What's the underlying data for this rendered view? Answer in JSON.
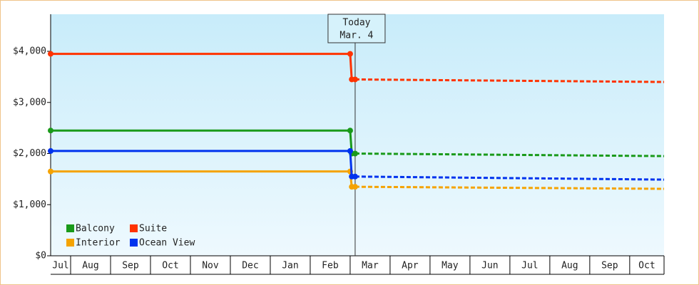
{
  "chart_data": {
    "type": "line",
    "ylim": [
      0,
      4725
    ],
    "yticks": [
      {
        "value": 0,
        "label": "$0"
      },
      {
        "value": 1000,
        "label": "$1,000"
      },
      {
        "value": 2000,
        "label": "$2,000"
      },
      {
        "value": 3000,
        "label": "$3,000"
      },
      {
        "value": 4000,
        "label": "$4,000"
      }
    ],
    "xlim": [
      0.5,
      15.86
    ],
    "xticks": [
      {
        "value": 0,
        "label": "Jul"
      },
      {
        "value": 1,
        "label": "Aug"
      },
      {
        "value": 2,
        "label": "Sep"
      },
      {
        "value": 3,
        "label": "Oct"
      },
      {
        "value": 4,
        "label": "Nov"
      },
      {
        "value": 5,
        "label": "Dec"
      },
      {
        "value": 6,
        "label": "Jan"
      },
      {
        "value": 7,
        "label": "Feb"
      },
      {
        "value": 8,
        "label": "Mar"
      },
      {
        "value": 9,
        "label": "Apr"
      },
      {
        "value": 10,
        "label": "May"
      },
      {
        "value": 11,
        "label": "Jun"
      },
      {
        "value": 12,
        "label": "Jul"
      },
      {
        "value": 13,
        "label": "Aug"
      },
      {
        "value": 14,
        "label": "Sep"
      },
      {
        "value": 15,
        "label": "Oct"
      }
    ],
    "today": {
      "x": 8.125,
      "label": [
        "Today",
        "Mar. 4"
      ]
    },
    "series": [
      {
        "name": "Balcony",
        "color": "#1a9a1a",
        "x": [
          0.5,
          8.0,
          8.04,
          8.125,
          15.86
        ],
        "values": [
          2450,
          2450,
          2000,
          2000,
          1950
        ]
      },
      {
        "name": "Suite",
        "color": "#ff3300",
        "x": [
          0.5,
          8.0,
          8.04,
          8.125,
          15.86
        ],
        "values": [
          3950,
          3950,
          3450,
          3450,
          3400
        ]
      },
      {
        "name": "Interior",
        "color": "#f5a300",
        "x": [
          0.5,
          8.0,
          8.04,
          8.125,
          15.86
        ],
        "values": [
          1650,
          1650,
          1350,
          1350,
          1310
        ]
      },
      {
        "name": "Ocean View",
        "color": "#0033ee",
        "x": [
          0.5,
          8.0,
          8.04,
          8.125,
          15.86
        ],
        "values": [
          2050,
          2050,
          1550,
          1550,
          1490
        ]
      }
    ]
  }
}
